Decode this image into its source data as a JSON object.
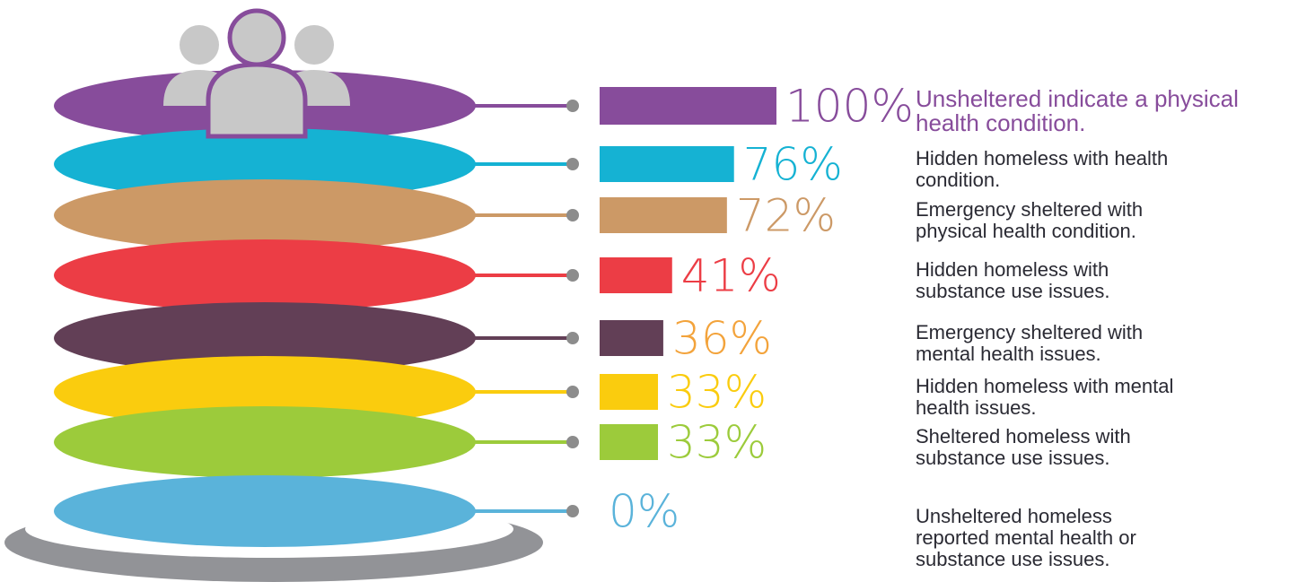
{
  "chart_data": {
    "type": "bar",
    "categories": [
      "Unsheltered indicate a physical health condition.",
      "Hidden homeless with health condition.",
      "Emergency sheltered with physical health condition.",
      "Hidden homeless with substance use issues.",
      "Emergency sheltered with mental health issues.",
      "Hidden homeless with mental health issues.",
      "Sheltered homeless with substance use issues.",
      "Unsheltered homeless reported mental health or substance use issues."
    ],
    "values": [
      100,
      76,
      72,
      41,
      36,
      33,
      33,
      0
    ],
    "value_labels": [
      "100%",
      "76%",
      "72%",
      "41%",
      "36%",
      "33%",
      "33%",
      "0%"
    ],
    "colors": [
      "#874c9b",
      "#15b2d3",
      "#cc9966",
      "#ec3d45",
      "#623f56",
      "#facc0e",
      "#9ccb3b",
      "#5ab3da"
    ],
    "label_colors": [
      "#874c9b",
      "#15b2d3",
      "#cc9966",
      "#ec3d45",
      "#f3a33b",
      "#facc0e",
      "#9ccb3b",
      "#5ab3da"
    ]
  }
}
